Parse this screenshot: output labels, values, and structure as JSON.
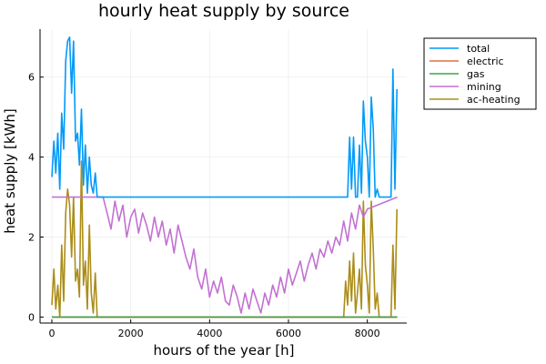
{
  "chart_data": {
    "type": "line",
    "title": "hourly heat supply by source",
    "xlabel": "hours of the year [h]",
    "ylabel": "heat supply [kWh]",
    "xlim": [
      -300,
      9000
    ],
    "ylim": [
      -0.15,
      7.2
    ],
    "xticks": [
      0,
      2000,
      4000,
      6000,
      8000
    ],
    "xtick_labels": [
      "0",
      "2000",
      "4000",
      "6000",
      "8000"
    ],
    "yticks": [
      0,
      2,
      4,
      6
    ],
    "ytick_labels": [
      "0",
      "2",
      "4",
      "6"
    ],
    "grid": true,
    "legend_position": "top-right",
    "series": [
      {
        "name": "total",
        "color": "#009af9",
        "x": [
          0,
          50,
          100,
          150,
          200,
          250,
          300,
          350,
          400,
          450,
          500,
          550,
          600,
          650,
          700,
          750,
          800,
          850,
          900,
          950,
          1000,
          1050,
          1100,
          1150,
          1200,
          1250,
          1300,
          1350,
          1400,
          2000,
          3000,
          4000,
          5000,
          6000,
          7000,
          7500,
          7550,
          7600,
          7650,
          7700,
          7750,
          7800,
          7850,
          7900,
          7950,
          8000,
          8050,
          8100,
          8150,
          8200,
          8250,
          8300,
          8350,
          8400,
          8450,
          8500,
          8550,
          8600,
          8650,
          8700,
          8750
        ],
        "y": [
          3.5,
          4.4,
          3.6,
          4.6,
          3.2,
          5.1,
          4.2,
          6.4,
          6.9,
          7.0,
          5.6,
          6.9,
          4.4,
          4.6,
          3.8,
          5.2,
          3.3,
          4.3,
          3.1,
          4.0,
          3.3,
          3.1,
          3.6,
          3.0,
          3.0,
          3.0,
          3.0,
          3.0,
          3.0,
          3.0,
          3.0,
          3.0,
          3.0,
          3.0,
          3.0,
          3.0,
          4.5,
          3.2,
          4.5,
          3.0,
          3.0,
          4.3,
          3.1,
          5.4,
          4.4,
          4.0,
          3.0,
          5.5,
          4.7,
          3.0,
          3.2,
          3.0,
          3.0,
          3.0,
          3.0,
          3.0,
          3.0,
          3.0,
          6.2,
          3.2,
          5.7
        ]
      },
      {
        "name": "electric",
        "color": "#e26f46",
        "x": [
          0,
          8760
        ],
        "y": [
          0,
          0
        ]
      },
      {
        "name": "gas",
        "color": "#3da44d",
        "x": [
          0,
          8760
        ],
        "y": [
          0,
          0
        ]
      },
      {
        "name": "mining",
        "color": "#c271d2",
        "x": [
          0,
          1300,
          1400,
          1500,
          1600,
          1700,
          1800,
          1900,
          2000,
          2100,
          2200,
          2300,
          2400,
          2500,
          2600,
          2700,
          2800,
          2900,
          3000,
          3100,
          3200,
          3300,
          3400,
          3500,
          3600,
          3700,
          3800,
          3900,
          4000,
          4100,
          4200,
          4300,
          4400,
          4500,
          4600,
          4700,
          4800,
          4900,
          5000,
          5100,
          5200,
          5300,
          5400,
          5500,
          5600,
          5700,
          5800,
          5900,
          6000,
          6100,
          6200,
          6300,
          6400,
          6500,
          6600,
          6700,
          6800,
          6900,
          7000,
          7100,
          7200,
          7300,
          7400,
          7500,
          7600,
          7700,
          7800,
          7900,
          8000,
          8760
        ],
        "y": [
          3.0,
          3.0,
          2.6,
          2.2,
          2.9,
          2.4,
          2.8,
          2.0,
          2.5,
          2.7,
          2.1,
          2.6,
          2.3,
          1.9,
          2.5,
          2.0,
          2.4,
          1.8,
          2.2,
          1.6,
          2.3,
          1.9,
          1.5,
          1.2,
          1.7,
          1.0,
          0.7,
          1.2,
          0.5,
          0.9,
          0.6,
          1.0,
          0.4,
          0.3,
          0.8,
          0.5,
          0.1,
          0.6,
          0.2,
          0.7,
          0.4,
          0.1,
          0.6,
          0.3,
          0.8,
          0.5,
          1.0,
          0.6,
          1.2,
          0.8,
          1.1,
          1.4,
          0.9,
          1.3,
          1.6,
          1.2,
          1.7,
          1.5,
          1.9,
          1.6,
          2.0,
          1.8,
          2.4,
          1.9,
          2.6,
          2.2,
          2.8,
          2.5,
          2.7,
          3.0
        ]
      },
      {
        "name": "ac-heating",
        "color": "#ac8d18",
        "x": [
          0,
          50,
          100,
          150,
          200,
          250,
          300,
          350,
          400,
          450,
          500,
          550,
          600,
          650,
          700,
          750,
          800,
          850,
          900,
          950,
          1000,
          1050,
          1100,
          1150,
          1200,
          1300,
          2000,
          4000,
          6000,
          7400,
          7450,
          7500,
          7550,
          7600,
          7650,
          7700,
          7750,
          7800,
          7850,
          7900,
          7950,
          8000,
          8050,
          8100,
          8150,
          8200,
          8250,
          8300,
          8400,
          8500,
          8600,
          8650,
          8700,
          8750
        ],
        "y": [
          0.3,
          1.2,
          0.2,
          0.8,
          0.0,
          1.8,
          0.4,
          2.6,
          3.2,
          2.8,
          1.5,
          3.0,
          0.9,
          1.2,
          0.5,
          3.9,
          0.8,
          1.4,
          0.2,
          2.3,
          0.6,
          0.1,
          1.1,
          0.0,
          0.0,
          0.0,
          0.0,
          0.0,
          0.0,
          0.0,
          0.9,
          0.3,
          1.4,
          0.4,
          1.6,
          0.1,
          0.6,
          1.2,
          0.2,
          2.9,
          1.3,
          0.8,
          0.1,
          2.9,
          1.7,
          0.2,
          0.6,
          0.0,
          0.0,
          0.0,
          0.0,
          1.8,
          0.2,
          2.7
        ]
      }
    ]
  }
}
